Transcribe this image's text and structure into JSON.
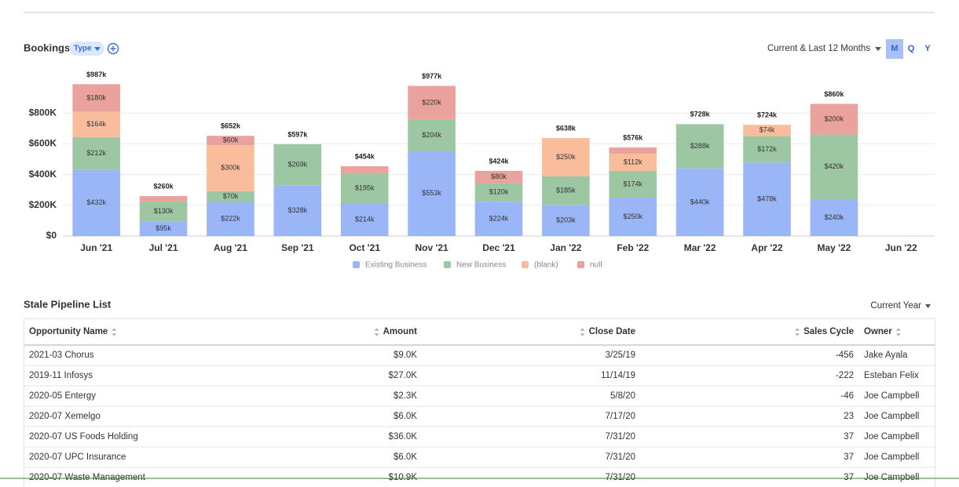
{
  "header": {
    "title": "Bookings",
    "filter": "Type",
    "range": "Current & Last 12 Months",
    "periods": [
      "M",
      "Q",
      "Y"
    ]
  },
  "chart_data": {
    "type": "stacked_bar",
    "categories": [
      "Jun '21",
      "Jul '21",
      "Aug '21",
      "Sep '21",
      "Oct '21",
      "Nov '21",
      "Dec '21",
      "Jan '22",
      "Feb '22",
      "Mar '22",
      "Apr '22",
      "May '22",
      "Jun '22"
    ],
    "series": [
      {
        "name": "Existing Business",
        "color": "#9ab6f6",
        "values": [
          432000,
          95000,
          222000,
          328000,
          214000,
          553000,
          224000,
          203000,
          250000,
          440000,
          478000,
          240000,
          null
        ],
        "value_labels": [
          "$432k",
          "$95k",
          "$222k",
          "$328k",
          "$214k",
          "$553k",
          "$224k",
          "$203k",
          "$250k",
          "$440k",
          "$478k",
          "$240k",
          null
        ]
      },
      {
        "name": "New Business",
        "color": "#9dc7a2",
        "values": [
          212000,
          130000,
          70000,
          269000,
          195000,
          204000,
          120000,
          185000,
          174000,
          288000,
          172000,
          420000,
          null
        ],
        "value_labels": [
          "$212k",
          "$130k",
          "$70k",
          "$269k",
          "$195k",
          "$204k",
          "$120k",
          "$185k",
          "$174k",
          "$288k",
          "$172k",
          "$420k",
          null
        ]
      },
      {
        "name": "(blank)",
        "color": "#f9bd9c",
        "values": [
          164000,
          null,
          300000,
          null,
          null,
          null,
          null,
          250000,
          112000,
          null,
          74000,
          null,
          null
        ],
        "value_labels": [
          "$164k",
          null,
          "$300k",
          null,
          null,
          null,
          null,
          "$250k",
          "$112k",
          null,
          "$74k",
          null,
          null
        ]
      },
      {
        "name": "null",
        "color": "#e9a29c",
        "values": [
          180000,
          35000,
          60000,
          null,
          45000,
          220000,
          80000,
          null,
          40000,
          null,
          null,
          200000,
          null
        ],
        "value_labels": [
          "$180k",
          null,
          "$60k",
          null,
          null,
          "$220k",
          "$80k",
          null,
          null,
          null,
          null,
          "$200k",
          null
        ]
      }
    ],
    "totals": [
      987000,
      260000,
      652000,
      597000,
      454000,
      977000,
      424000,
      638000,
      576000,
      728000,
      724000,
      860000,
      null
    ],
    "total_labels": [
      "$987k",
      "$260k",
      "$652k",
      "$597k",
      "$454k",
      "$977k",
      "$424k",
      "$638k",
      "$576k",
      "$728k",
      "$724k",
      "$860k",
      null
    ],
    "ylim": [
      0,
      1000000
    ],
    "yticks": [
      {
        "value": 0,
        "label": "$0"
      },
      {
        "value": 200000,
        "label": "$200K"
      },
      {
        "value": 400000,
        "label": "$400K"
      },
      {
        "value": 600000,
        "label": "$600K"
      },
      {
        "value": 800000,
        "label": "$800K"
      }
    ],
    "grid": true,
    "legend": "bottom"
  },
  "table": {
    "title": "Stale Pipeline List",
    "filter": "Current Year",
    "columns": [
      "Opportunity Name",
      "Amount",
      "Close Date",
      "Sales Cycle",
      "Owner"
    ],
    "rows": [
      [
        "2021-03 Chorus",
        "$9.0K",
        "3/25/19",
        "-456",
        "Jake Ayala"
      ],
      [
        "2019-11 Infosys",
        "$27.0K",
        "11/14/19",
        "-222",
        "Esteban Felix"
      ],
      [
        "2020-05 Entergy",
        "$2.3K",
        "5/8/20",
        "-46",
        "Joe Campbell"
      ],
      [
        "2020-07 Xemelgo",
        "$6.0K",
        "7/17/20",
        "23",
        "Joe Campbell"
      ],
      [
        "2020-07 US Foods Holding",
        "$36.0K",
        "7/31/20",
        "37",
        "Joe Campbell"
      ],
      [
        "2020-07 UPC Insurance",
        "$6.0K",
        "7/31/20",
        "37",
        "Joe Campbell"
      ],
      [
        "2020-07 Waste Management",
        "$10.9K",
        "7/31/20",
        "37",
        "Joe Campbell"
      ]
    ]
  }
}
